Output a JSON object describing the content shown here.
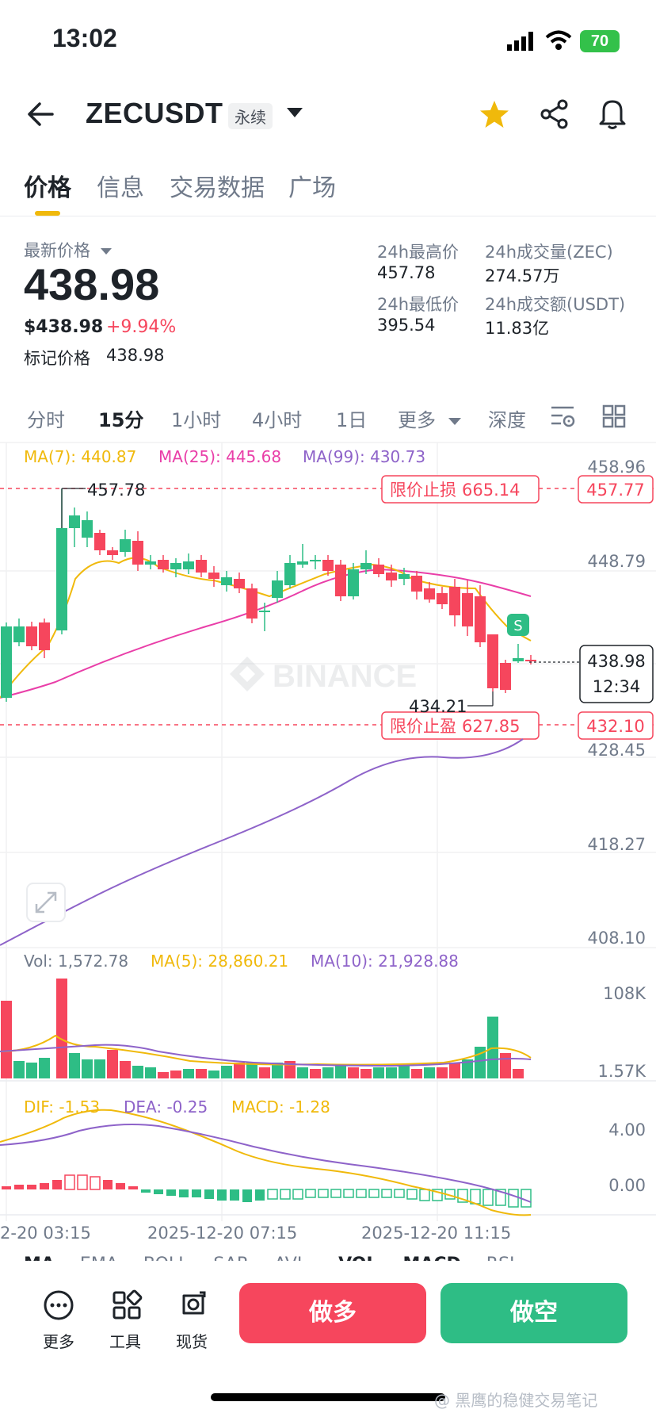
{
  "status_bar": {
    "time": "13:02",
    "battery": "70"
  },
  "header": {
    "symbol": "ZECUSDT",
    "contract_type": "永续"
  },
  "tabs": [
    {
      "label": "价格",
      "active": true
    },
    {
      "label": "信息",
      "active": false
    },
    {
      "label": "交易数据",
      "active": false
    },
    {
      "label": "广场",
      "active": false
    }
  ],
  "price": {
    "last_label": "最新价格",
    "last": "438.98",
    "usd": "$438.98",
    "change": "+9.94%",
    "mark_label": "标记价格",
    "mark": "438.98"
  },
  "stats": {
    "high_label": "24h最高价",
    "high": "457.78",
    "low_label": "24h最低价",
    "low": "395.54",
    "vol_zec_label": "24h成交量(ZEC)",
    "vol_zec": "274.57万",
    "vol_usdt_label": "24h成交额(USDT)",
    "vol_usdt": "11.83亿"
  },
  "timeframes": {
    "items": [
      "分时",
      "15分",
      "1小时",
      "4小时",
      "1日",
      "更多",
      "深度"
    ],
    "active": "15分"
  },
  "indicators": {
    "ma7": "MA(7): 440.87",
    "ma25": "MA(25): 445.68",
    "ma99": "MA(99): 430.73"
  },
  "price_axis": [
    "458.96",
    "448.79",
    "428.45",
    "418.27",
    "408.10"
  ],
  "chart_annotations": {
    "high_marker": "457.78",
    "low_marker": "434.21",
    "stop_loss_label": "限价止损",
    "stop_loss_value": "665.14",
    "stop_loss_price": "457.77",
    "take_profit_label": "限价止盈",
    "take_profit_value": "627.85",
    "take_profit_price": "432.10",
    "current_price": "438.98",
    "countdown": "12:34",
    "watermark": "BINANCE",
    "signal_badge": "S"
  },
  "volume": {
    "vol": "Vol: 1,572.78",
    "ma5": "MA(5): 28,860.21",
    "ma10": "MA(10): 21,928.88",
    "axis_top": "108K",
    "axis_bottom": "1.57K"
  },
  "macd": {
    "dif": "DIF: -1.53",
    "dea": "DEA: -0.25",
    "macd": "MACD: -1.28",
    "axis_top": "4.00",
    "axis_mid": "0.00"
  },
  "time_axis": [
    "2-20 03:15",
    "2025-12-20 07:15",
    "2025-12-20 11:15"
  ],
  "indicator_tabs": [
    "MA",
    "EMA",
    "BOLL",
    "SAR",
    "AVL",
    "VOL",
    "MACD",
    "RSI"
  ],
  "bottom_bar": {
    "more": "更多",
    "tools": "工具",
    "spot": "现货",
    "long": "做多",
    "short": "做空"
  },
  "watermark_text": "@ 黑鹰的稳健交易笔记",
  "colors": {
    "up": "#2ebd85",
    "down": "#f6465d",
    "ma7": "#f0b90b",
    "ma25": "#e93ea8",
    "ma99": "#8e63c9",
    "accent": "#f0b90b"
  },
  "chart_data": {
    "type": "candlestick",
    "ohlc_close_approx": [
      436,
      440,
      441,
      442,
      456,
      455,
      453,
      449,
      446,
      448,
      445,
      444,
      445,
      444,
      446,
      445,
      446,
      444,
      444,
      443,
      441,
      440,
      442,
      445,
      447,
      449,
      449,
      447,
      446,
      447,
      448,
      448,
      447,
      447,
      446,
      445,
      444,
      444,
      443,
      441,
      438,
      436,
      439,
      440,
      439
    ],
    "ylim": [
      404,
      461
    ]
  }
}
